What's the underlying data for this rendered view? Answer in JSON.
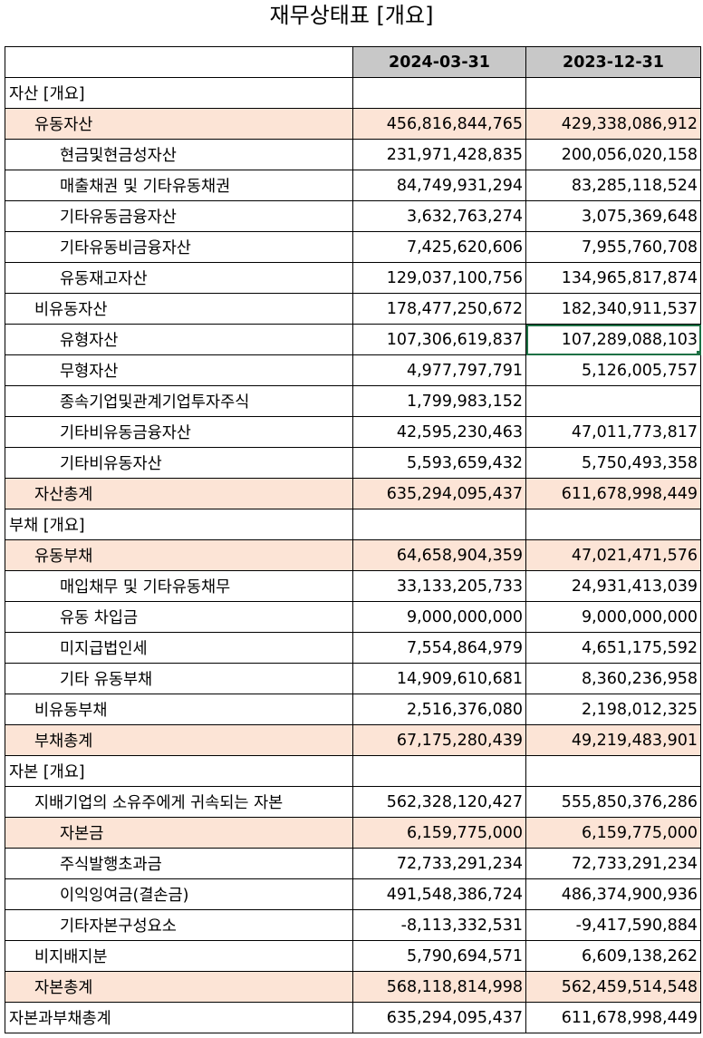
{
  "title": "재무상태표 [개요]",
  "columns": [
    "2024-03-31",
    "2023-12-31"
  ],
  "accent_colors": {
    "highlight_row": "#fce4d6",
    "header": "#c8c8c8",
    "selection": "#1e7145"
  },
  "rows": [
    {
      "label": "자산 [개요]",
      "indent": 0,
      "hl": false,
      "v1": "",
      "v2": ""
    },
    {
      "label": "유동자산",
      "indent": 1,
      "hl": true,
      "v1": "456,816,844,765",
      "v2": "429,338,086,912"
    },
    {
      "label": "현금및현금성자산",
      "indent": 2,
      "hl": false,
      "v1": "231,971,428,835",
      "v2": "200,056,020,158"
    },
    {
      "label": "매출채권 및 기타유동채권",
      "indent": 2,
      "hl": false,
      "v1": "84,749,931,294",
      "v2": "83,285,118,524"
    },
    {
      "label": "기타유동금융자산",
      "indent": 2,
      "hl": false,
      "v1": "3,632,763,274",
      "v2": "3,075,369,648"
    },
    {
      "label": "기타유동비금융자산",
      "indent": 2,
      "hl": false,
      "v1": "7,425,620,606",
      "v2": "7,955,760,708"
    },
    {
      "label": "유동재고자산",
      "indent": 2,
      "hl": false,
      "v1": "129,037,100,756",
      "v2": "134,965,817,874"
    },
    {
      "label": "비유동자산",
      "indent": 1,
      "hl": false,
      "v1": "178,477,250,672",
      "v2": "182,340,911,537"
    },
    {
      "label": "유형자산",
      "indent": 2,
      "hl": false,
      "v1": "107,306,619,837",
      "v2": "107,289,088,103",
      "selected": true
    },
    {
      "label": "무형자산",
      "indent": 2,
      "hl": false,
      "v1": "4,977,797,791",
      "v2": "5,126,005,757"
    },
    {
      "label": "종속기업및관계기업투자주식",
      "indent": 2,
      "hl": false,
      "v1": "1,799,983,152",
      "v2": ""
    },
    {
      "label": "기타비유동금융자산",
      "indent": 2,
      "hl": false,
      "v1": "42,595,230,463",
      "v2": "47,011,773,817"
    },
    {
      "label": "기타비유동자산",
      "indent": 2,
      "hl": false,
      "v1": "5,593,659,432",
      "v2": "5,750,493,358"
    },
    {
      "label": "자산총계",
      "indent": 1,
      "hl": true,
      "v1": "635,294,095,437",
      "v2": "611,678,998,449"
    },
    {
      "label": "부채 [개요]",
      "indent": 0,
      "hl": false,
      "v1": "",
      "v2": ""
    },
    {
      "label": "유동부채",
      "indent": 1,
      "hl": true,
      "v1": "64,658,904,359",
      "v2": "47,021,471,576"
    },
    {
      "label": "매입채무 및 기타유동채무",
      "indent": 2,
      "hl": false,
      "v1": "33,133,205,733",
      "v2": "24,931,413,039"
    },
    {
      "label": "유동 차입금",
      "indent": 2,
      "hl": false,
      "v1": "9,000,000,000",
      "v2": "9,000,000,000"
    },
    {
      "label": "미지급법인세",
      "indent": 2,
      "hl": false,
      "v1": "7,554,864,979",
      "v2": "4,651,175,592"
    },
    {
      "label": "기타 유동부채",
      "indent": 2,
      "hl": false,
      "v1": "14,909,610,681",
      "v2": "8,360,236,958"
    },
    {
      "label": "비유동부채",
      "indent": 1,
      "hl": false,
      "v1": "2,516,376,080",
      "v2": "2,198,012,325"
    },
    {
      "label": "부채총계",
      "indent": 1,
      "hl": true,
      "v1": "67,175,280,439",
      "v2": "49,219,483,901"
    },
    {
      "label": "자본 [개요]",
      "indent": 0,
      "hl": false,
      "v1": "",
      "v2": ""
    },
    {
      "label": "지배기업의 소유주에게 귀속되는 자본",
      "indent": 1,
      "hl": false,
      "v1": "562,328,120,427",
      "v2": "555,850,376,286"
    },
    {
      "label": "자본금",
      "indent": 2,
      "hl": true,
      "v1": "6,159,775,000",
      "v2": "6,159,775,000"
    },
    {
      "label": "주식발행초과금",
      "indent": 2,
      "hl": false,
      "v1": "72,733,291,234",
      "v2": "72,733,291,234"
    },
    {
      "label": "이익잉여금(결손금)",
      "indent": 2,
      "hl": false,
      "v1": "491,548,386,724",
      "v2": "486,374,900,936"
    },
    {
      "label": "기타자본구성요소",
      "indent": 2,
      "hl": false,
      "v1": "-8,113,332,531",
      "v2": "-9,417,590,884"
    },
    {
      "label": "비지배지분",
      "indent": 1,
      "hl": false,
      "v1": "5,790,694,571",
      "v2": "6,609,138,262"
    },
    {
      "label": "자본총계",
      "indent": 1,
      "hl": true,
      "v1": "568,118,814,998",
      "v2": "562,459,514,548"
    },
    {
      "label": "자본과부채총계",
      "indent": 0,
      "hl": false,
      "v1": "635,294,095,437",
      "v2": "611,678,998,449"
    }
  ]
}
